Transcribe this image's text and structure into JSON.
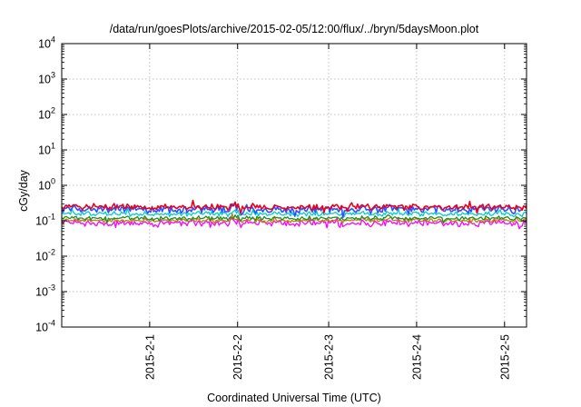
{
  "chart_data": {
    "type": "line",
    "title": "/data/run/goesPlots/archive/2015-02-05/12:00/flux/../bryn/5daysMoon.plot",
    "xlabel": "Coordinated Universal Time (UTC)",
    "ylabel": "cGy/day",
    "yscale": "log",
    "ylim": [
      0.0001,
      10000
    ],
    "xlim": [
      2015.0003,
      2015.0151
    ],
    "grid": true,
    "y_ticks": [
      {
        "value": 0.0001,
        "base": "10",
        "exp": "-4"
      },
      {
        "value": 0.001,
        "base": "10",
        "exp": "-3"
      },
      {
        "value": 0.01,
        "base": "10",
        "exp": "-2"
      },
      {
        "value": 0.1,
        "base": "10",
        "exp": "-1"
      },
      {
        "value": 1,
        "base": "10",
        "exp": "0"
      },
      {
        "value": 10,
        "base": "10",
        "exp": "1"
      },
      {
        "value": 100,
        "base": "10",
        "exp": "2"
      },
      {
        "value": 1000,
        "base": "10",
        "exp": "3"
      },
      {
        "value": 10000,
        "base": "10",
        "exp": "4"
      }
    ],
    "x_ticks": [
      {
        "label": "2015-2-1",
        "value": 2015.0031
      },
      {
        "label": "2015-2-2",
        "value": 2015.0059
      },
      {
        "label": "2015-2-3",
        "value": 2015.0088
      },
      {
        "label": "2015-2-4",
        "value": 2015.0116
      },
      {
        "label": "2015-2-5",
        "value": 2015.0144
      }
    ],
    "series": [
      {
        "color": "#ff00ff",
        "level": 0.085,
        "spread": 0.11
      },
      {
        "color": "#b8860b",
        "level": 0.102,
        "spread": 0.07
      },
      {
        "color": "#228b22",
        "level": 0.118,
        "spread": 0.07
      },
      {
        "color": "#00cccc",
        "level": 0.155,
        "spread": 0.08
      },
      {
        "color": "#3050ff",
        "level": 0.21,
        "spread": 0.14
      },
      {
        "color": "#e8001c",
        "level": 0.245,
        "spread": 0.1
      }
    ]
  }
}
